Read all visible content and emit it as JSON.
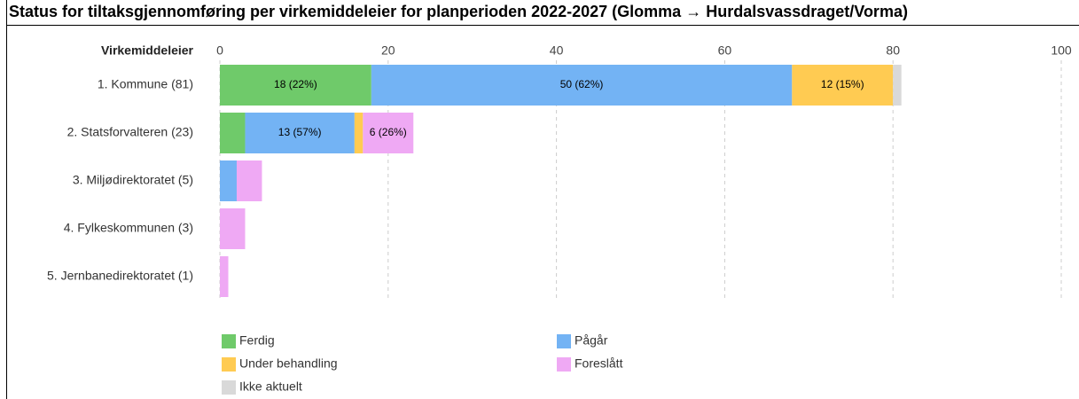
{
  "chart_data": {
    "type": "stacked-barh",
    "title": "Status for tiltaksgjennomføring per virkemiddeleier for planperioden 2022-2027 (Glomma → Hurdalsvassdraget/Vorma)",
    "ylabel": "Virkemiddeleier",
    "categories": [
      "1. Kommune (81)",
      "2. Statsforvalteren (23)",
      "3. Miljødirektoratet (5)",
      "4. Fylkeskommunen (3)",
      "5. Jernbanedirektoratet (1)"
    ],
    "series": [
      {
        "name": "Ferdig",
        "color": "#6fca6a",
        "values": [
          18,
          3,
          0,
          0,
          0
        ],
        "value_labels": [
          "18 (22%)",
          null,
          null,
          null,
          null
        ]
      },
      {
        "name": "Pågår",
        "color": "#73b3f4",
        "values": [
          50,
          13,
          2,
          0,
          0
        ],
        "value_labels": [
          "50 (62%)",
          "13 (57%)",
          null,
          null,
          null
        ]
      },
      {
        "name": "Under behandling",
        "color": "#ffcb52",
        "values": [
          12,
          1,
          0,
          0,
          0
        ],
        "value_labels": [
          "12 (15%)",
          null,
          null,
          null,
          null
        ]
      },
      {
        "name": "Foreslått",
        "color": "#efa9f4",
        "values": [
          0,
          6,
          3,
          3,
          1
        ],
        "value_labels": [
          null,
          "6 (26%)",
          null,
          null,
          null
        ]
      },
      {
        "name": "Ikke aktuelt",
        "color": "#d9d9d9",
        "values": [
          1,
          0,
          0,
          0,
          0
        ],
        "value_labels": [
          null,
          null,
          null,
          null,
          null
        ]
      }
    ],
    "xlim": [
      0,
      100
    ],
    "xticks": [
      0,
      20,
      40,
      60,
      80,
      100
    ],
    "grid": true
  }
}
